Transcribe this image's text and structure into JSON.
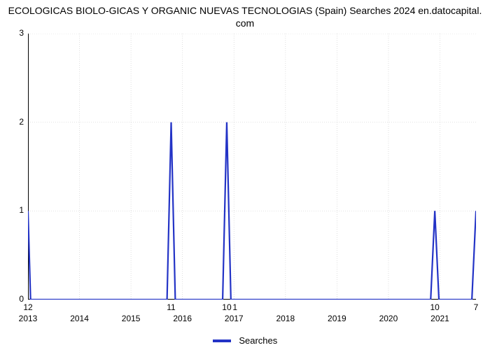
{
  "chart": {
    "type": "line",
    "title_line1": "ECOLOGICAS BIOLO-GICAS Y ORGANIC NUEVAS TECNOLOGIAS (Spain) Searches 2024 en.datocapital.",
    "title_line2": "com",
    "title_fontsize": 14,
    "background_color": "#ffffff",
    "grid_color": "#7f7f7f",
    "grid_opacity": 0.35,
    "line_color": "#2333c6",
    "line_width": 2.2,
    "xlim_min": 2013,
    "xlim_max": 2021.7,
    "ylim_min": 0,
    "ylim_max": 3,
    "xticks": [
      2013,
      2014,
      2015,
      2016,
      2017,
      2018,
      2019,
      2020,
      2021
    ],
    "yticks": [
      0,
      1,
      2,
      3
    ],
    "x_labels": {
      "t2013": "2013",
      "t2014": "2014",
      "t2015": "2015",
      "t2016": "2016",
      "t2017": "2017",
      "t2018": "2018",
      "t2019": "2019",
      "t2020": "2020",
      "t2021": "2021"
    },
    "y_labels": {
      "t0": "0",
      "t1": "1",
      "t2": "2",
      "t3": "3"
    },
    "data_point_labels": {
      "p0": "12",
      "p1": "11",
      "p2": "10",
      "p2b": "1",
      "p3": "10",
      "p4": "7"
    },
    "series_values": [
      [
        2013.0,
        1
      ],
      [
        2013.05,
        0
      ],
      [
        2015.7,
        0
      ],
      [
        2015.78,
        2
      ],
      [
        2015.86,
        0
      ],
      [
        2016.78,
        0
      ],
      [
        2016.86,
        2
      ],
      [
        2016.94,
        0
      ],
      [
        2020.82,
        0
      ],
      [
        2020.9,
        1
      ],
      [
        2020.98,
        0
      ],
      [
        2021.62,
        0
      ],
      [
        2021.7,
        1
      ]
    ],
    "legend_label": "Searches",
    "label_fontsize": 12
  }
}
